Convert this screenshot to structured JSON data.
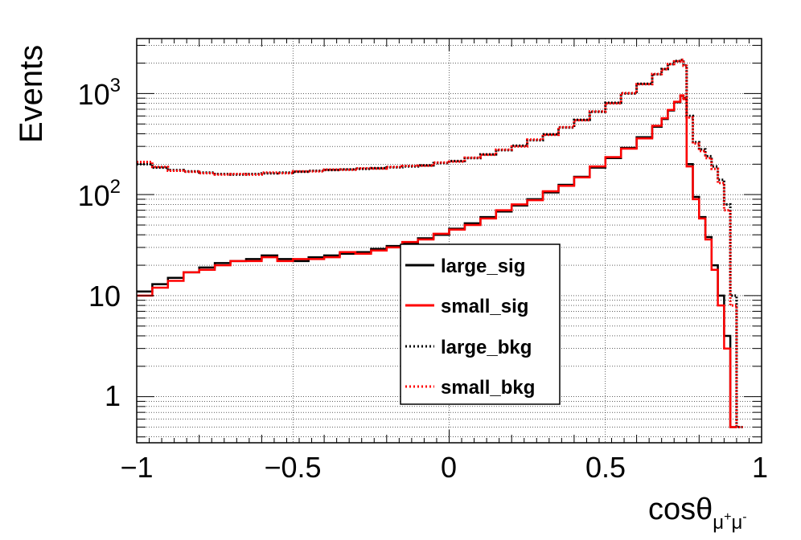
{
  "chart_data": {
    "type": "line",
    "xlabel": {
      "base": "cosθ",
      "sub_mu1": "μ",
      "sup_plus": "+",
      "sub_mu2": "μ",
      "sup_minus": "-"
    },
    "ylabel": "Events",
    "xlim": [
      -1,
      1
    ],
    "ylim": [
      0.35,
      3500
    ],
    "yscale": "log",
    "grid": true,
    "x_ticks": [
      -1,
      -0.5,
      0,
      0.5,
      1
    ],
    "x_tick_labels": [
      "−1",
      "−0.5",
      "0",
      "0.5",
      "1"
    ],
    "y_ticks": [
      1,
      10,
      100,
      1000
    ],
    "y_tick_labels": {
      "t1": "1",
      "t10": "10",
      "t100_base": "10",
      "t100_exp": "2",
      "t1000_base": "10",
      "t1000_exp": "3"
    },
    "legend_position": "center-right",
    "series": [
      {
        "name": "large_sig",
        "color": "#000000",
        "style": "solid",
        "x": [
          -1.0,
          -0.95,
          -0.9,
          -0.85,
          -0.8,
          -0.75,
          -0.7,
          -0.65,
          -0.6,
          -0.55,
          -0.5,
          -0.45,
          -0.4,
          -0.35,
          -0.3,
          -0.25,
          -0.2,
          -0.15,
          -0.1,
          -0.05,
          0.0,
          0.05,
          0.1,
          0.15,
          0.2,
          0.25,
          0.3,
          0.35,
          0.4,
          0.45,
          0.5,
          0.55,
          0.6,
          0.65,
          0.68,
          0.7,
          0.72,
          0.74,
          0.75,
          0.76,
          0.78,
          0.8,
          0.82,
          0.84,
          0.86,
          0.88,
          0.9
        ],
        "y": [
          11,
          13,
          15,
          17,
          19,
          21,
          22,
          23,
          25,
          23,
          22,
          24,
          25,
          26,
          27,
          29,
          31,
          33,
          37,
          40,
          46,
          52,
          60,
          68,
          78,
          90,
          105,
          125,
          150,
          185,
          230,
          290,
          370,
          470,
          560,
          680,
          820,
          950,
          900,
          200,
          95,
          60,
          38,
          20,
          10,
          4,
          0.5
        ]
      },
      {
        "name": "small_sig",
        "color": "#ff0000",
        "style": "solid",
        "x": [
          -1.0,
          -0.95,
          -0.9,
          -0.85,
          -0.8,
          -0.75,
          -0.7,
          -0.65,
          -0.6,
          -0.55,
          -0.5,
          -0.45,
          -0.4,
          -0.35,
          -0.3,
          -0.25,
          -0.2,
          -0.15,
          -0.1,
          -0.05,
          0.0,
          0.05,
          0.1,
          0.15,
          0.2,
          0.25,
          0.3,
          0.35,
          0.4,
          0.45,
          0.5,
          0.55,
          0.6,
          0.65,
          0.68,
          0.7,
          0.72,
          0.74,
          0.75,
          0.76,
          0.78,
          0.8,
          0.82,
          0.84,
          0.86,
          0.88,
          0.9
        ],
        "y": [
          10,
          12,
          14,
          17,
          18,
          20,
          22,
          22,
          24,
          22,
          23,
          23,
          24,
          27,
          26,
          28,
          30,
          34,
          36,
          41,
          45,
          50,
          58,
          70,
          80,
          88,
          108,
          122,
          148,
          190,
          235,
          285,
          360,
          480,
          570,
          690,
          830,
          960,
          880,
          190,
          90,
          58,
          36,
          18,
          8,
          3,
          0.5
        ]
      },
      {
        "name": "large_bkg",
        "color": "#000000",
        "style": "dotted",
        "x": [
          -1.0,
          -0.95,
          -0.9,
          -0.85,
          -0.8,
          -0.75,
          -0.7,
          -0.65,
          -0.6,
          -0.55,
          -0.5,
          -0.45,
          -0.4,
          -0.35,
          -0.3,
          -0.25,
          -0.2,
          -0.15,
          -0.1,
          -0.05,
          0.0,
          0.05,
          0.1,
          0.15,
          0.2,
          0.25,
          0.3,
          0.35,
          0.4,
          0.45,
          0.5,
          0.55,
          0.6,
          0.65,
          0.68,
          0.7,
          0.72,
          0.74,
          0.75,
          0.76,
          0.78,
          0.8,
          0.82,
          0.84,
          0.86,
          0.88,
          0.9,
          0.92
        ],
        "y": [
          200,
          185,
          175,
          170,
          165,
          160,
          158,
          160,
          162,
          165,
          168,
          172,
          175,
          178,
          180,
          183,
          186,
          190,
          195,
          205,
          215,
          230,
          250,
          275,
          305,
          345,
          395,
          460,
          550,
          660,
          810,
          1000,
          1250,
          1550,
          1750,
          1950,
          2100,
          2150,
          1900,
          600,
          330,
          280,
          240,
          190,
          140,
          80,
          10,
          0.5
        ]
      },
      {
        "name": "small_bkg",
        "color": "#ff0000",
        "style": "dotted",
        "x": [
          -1.0,
          -0.95,
          -0.9,
          -0.85,
          -0.8,
          -0.75,
          -0.7,
          -0.65,
          -0.6,
          -0.55,
          -0.5,
          -0.45,
          -0.4,
          -0.35,
          -0.3,
          -0.25,
          -0.2,
          -0.15,
          -0.1,
          -0.05,
          0.0,
          0.05,
          0.1,
          0.15,
          0.2,
          0.25,
          0.3,
          0.35,
          0.4,
          0.45,
          0.5,
          0.55,
          0.6,
          0.65,
          0.68,
          0.7,
          0.72,
          0.74,
          0.75,
          0.76,
          0.78,
          0.8,
          0.82,
          0.84,
          0.86,
          0.88,
          0.9,
          0.92
        ],
        "y": [
          210,
          188,
          172,
          168,
          163,
          158,
          160,
          158,
          165,
          163,
          170,
          170,
          177,
          176,
          182,
          181,
          188,
          192,
          193,
          208,
          212,
          232,
          248,
          278,
          300,
          350,
          390,
          465,
          545,
          665,
          800,
          1010,
          1240,
          1560,
          1740,
          1960,
          2080,
          2160,
          1880,
          580,
          320,
          270,
          230,
          180,
          130,
          70,
          8,
          0.5
        ]
      }
    ]
  }
}
